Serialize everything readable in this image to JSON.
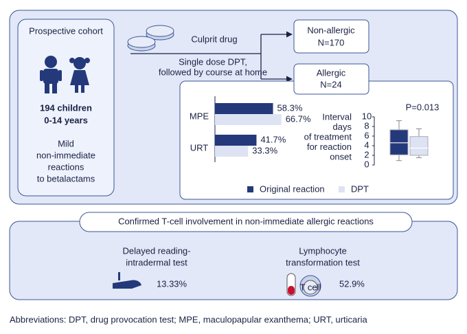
{
  "cohort": {
    "title": "Prospective cohort",
    "count": "194 children",
    "age": "0-14 years",
    "description": [
      "Mild",
      "non-immediate",
      "reactions",
      "to betalactams"
    ]
  },
  "flow": {
    "culprit": "Culprit drug",
    "protocol": [
      "Single dose DPT,",
      "followed by course at home"
    ]
  },
  "outcomes": [
    {
      "label": "Non-allergic",
      "n": "N=170"
    },
    {
      "label": "Allergic",
      "n": "N=24"
    }
  ],
  "chart_data": [
    {
      "type": "bar",
      "orientation": "horizontal",
      "categories": [
        "MPE",
        "URT"
      ],
      "series": [
        {
          "name": "Original reaction",
          "color": "#24397a",
          "values": [
            58.3,
            41.7
          ],
          "value_labels": [
            "58.3%",
            "41.7%"
          ]
        },
        {
          "name": "DPT",
          "color": "#dde3f3",
          "values": [
            66.7,
            33.3
          ],
          "value_labels": [
            "66.7%",
            "33.3%"
          ]
        }
      ]
    },
    {
      "type": "box",
      "y_label": [
        "Interval",
        "days",
        "of treatment",
        "for reaction",
        "onset"
      ],
      "annotation": "P=0.013",
      "ylim": [
        0,
        10
      ],
      "yticks": [
        0,
        2,
        4,
        6,
        8,
        10
      ],
      "series": [
        {
          "color": "#24397a",
          "min": 0.9,
          "q1": 2.1,
          "median": 4.6,
          "q3": 7.3,
          "max": 9.2
        },
        {
          "color": "#dde3f3",
          "min": 1.5,
          "q1": 2,
          "median": 3.5,
          "q3": 5.9,
          "max": 7.5
        }
      ]
    }
  ],
  "findings": {
    "title": "Confirmed T-cell involvement in non-immediate allergic reactions",
    "tests": [
      {
        "label": [
          "Delayed reading-",
          "intradermal test"
        ],
        "result": "13.33%"
      },
      {
        "label": [
          "Lymphocyte",
          "transformation test"
        ],
        "result": "52.9%",
        "icon_label": "T cell"
      }
    ]
  },
  "footnote": "Abbreviations: DPT, drug provocation test; MPE, maculopapular exanthema; URT, urticaria"
}
